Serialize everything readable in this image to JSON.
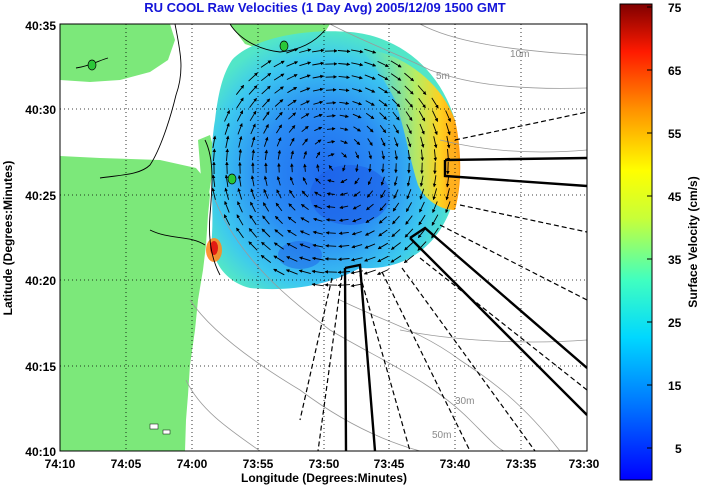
{
  "title": "RU COOL Raw Velocities (1 Day Avg) 2005/12/09 1500 GMT",
  "map": {
    "xlabel": "Longitude (Degrees:Minutes)",
    "ylabel": "Latitude (Degrees:Minutes)",
    "lon_ticks": [
      "74:10",
      "74:05",
      "74:00",
      "73:55",
      "73:50",
      "73:45",
      "73:40",
      "73:35",
      "73:30"
    ],
    "lat_ticks": [
      "40:35",
      "40:30",
      "40:25",
      "40:20",
      "40:15",
      "40:10"
    ],
    "contour_labels": [
      "5m",
      "10m",
      "30m",
      "50m"
    ],
    "grid": "dotted",
    "colors": {
      "land": "#7ce87a",
      "title": "#1414d8",
      "contour": "#9a9a9a",
      "vector": "#000000"
    }
  },
  "colorbar": {
    "label": "Surface Velocity (cm/s)",
    "ticks": [
      "75",
      "65",
      "55",
      "45",
      "35",
      "25",
      "15",
      "5"
    ],
    "range": [
      0,
      75
    ],
    "colormap": "jet"
  }
}
